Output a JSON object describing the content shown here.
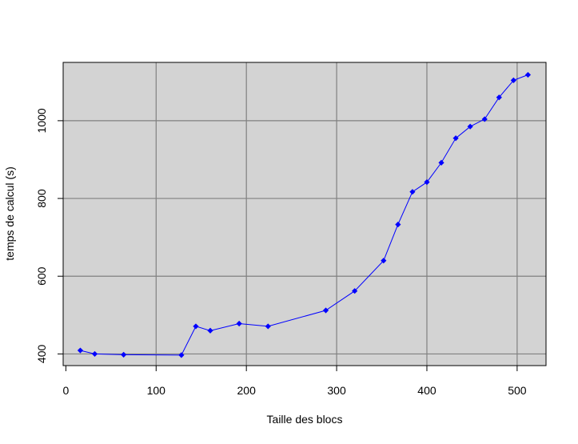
{
  "chart_data": {
    "type": "line",
    "title": "",
    "xlabel": "Taille des blocs",
    "ylabel": "temps de calcul (s)",
    "xlim": [
      -3,
      532
    ],
    "ylim": [
      370,
      1150
    ],
    "x_ticks": [
      0,
      100,
      200,
      300,
      400,
      500
    ],
    "y_ticks": [
      400,
      600,
      800,
      1000
    ],
    "x_tick_labels": [
      "0",
      "100",
      "200",
      "300",
      "400",
      "500"
    ],
    "y_tick_labels": [
      "400",
      "600",
      "800",
      "1000"
    ],
    "grid": true,
    "legend": "none",
    "series": [
      {
        "x": [
          16,
          32,
          64,
          128,
          144,
          160,
          192,
          224,
          288,
          320,
          352,
          368,
          384,
          400,
          416,
          432,
          448,
          464,
          480,
          496,
          512
        ],
        "y": [
          409,
          400,
          398,
          397,
          471,
          460,
          478,
          471,
          512,
          562,
          640,
          733,
          817,
          842,
          892,
          955,
          985,
          1004,
          1060,
          1104,
          1118
        ]
      }
    ]
  },
  "colors": {
    "panel_background": "#d3d3d3",
    "grid": "#808080",
    "series": "#0000ff",
    "axis": "#000000"
  }
}
